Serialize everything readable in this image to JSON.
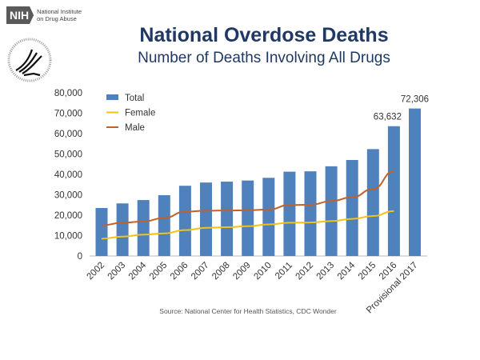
{
  "header": {
    "logo_nih": "NIH",
    "logo_text_line1": "National Institute",
    "logo_text_line2": "on Drug Abuse",
    "hhs_seal": "Department of Health & Human Services USA"
  },
  "chart_data": {
    "type": "bar",
    "title": "National Overdose Deaths",
    "subtitle": "Number of Deaths Involving All Drugs",
    "categories": [
      "2002",
      "2003",
      "2004",
      "2005",
      "2006",
      "2007",
      "2008",
      "2009",
      "2010",
      "2011",
      "2012",
      "2013",
      "2014",
      "2015",
      "2016",
      "Provisional 2017"
    ],
    "series": [
      {
        "name": "Total",
        "type": "bar",
        "color": "#4f81bd",
        "values": [
          23518,
          25785,
          27424,
          29813,
          34425,
          36010,
          36450,
          37004,
          38329,
          41340,
          41502,
          43982,
          47055,
          52404,
          63632,
          72306
        ]
      },
      {
        "name": "Female",
        "type": "line",
        "color": "#f2c314",
        "values": [
          8500,
          9500,
          10500,
          11100,
          12700,
          13800,
          14100,
          14600,
          15500,
          16300,
          16400,
          17100,
          18200,
          19600,
          22000,
          null
        ]
      },
      {
        "name": "Male",
        "type": "line",
        "color": "#c0622b",
        "values": [
          15000,
          16300,
          16900,
          18700,
          21700,
          22200,
          22300,
          22400,
          22800,
          25000,
          25100,
          26900,
          28800,
          32800,
          41600,
          null
        ]
      }
    ],
    "data_labels": [
      {
        "category": "2016",
        "text": "63,632"
      },
      {
        "category": "Provisional 2017",
        "text": "72,306"
      }
    ],
    "ylim": [
      0,
      80000
    ],
    "yticks": [
      "0",
      "10,000",
      "20,000",
      "30,000",
      "40,000",
      "50,000",
      "60,000",
      "70,000",
      "80,000"
    ],
    "grid": false,
    "legend": "top-left",
    "source": "Source: National Center for Health Statistics, CDC Wonder"
  }
}
